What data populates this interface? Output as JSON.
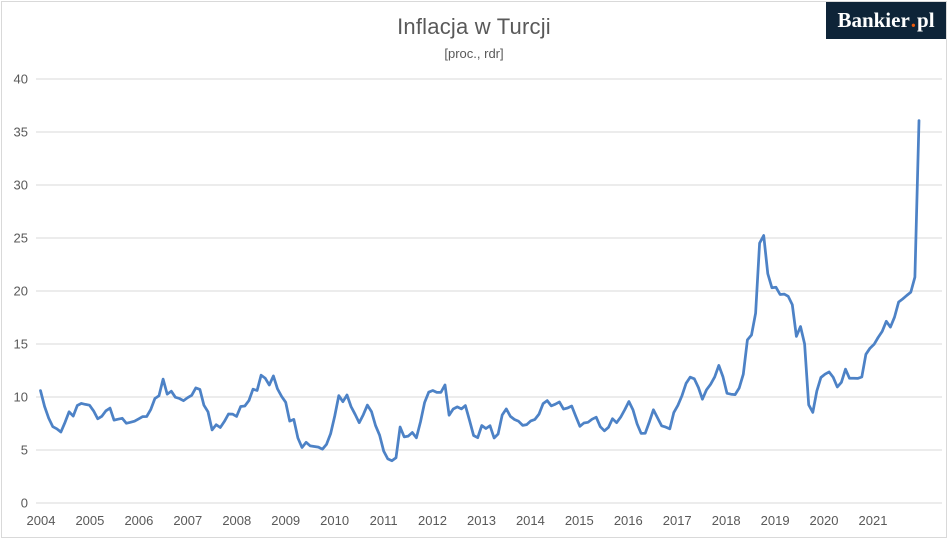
{
  "header": {
    "title": "Inflacja w Turcji",
    "subtitle": "[proc., rdr]",
    "logo": {
      "text_main": "Bankier",
      "dot": ".",
      "suffix": "pl",
      "bg_color": "#0e2438",
      "dot_color": "#ec5a0c",
      "text_color": "#ffffff"
    }
  },
  "chart_data": {
    "type": "line",
    "title": "Inflacja w Turcji",
    "subtitle": "[proc., rdr]",
    "frequency": "monthly",
    "start_year": 2004,
    "x_tick_labels": [
      "2004",
      "2005",
      "2006",
      "2007",
      "2008",
      "2009",
      "2010",
      "2011",
      "2012",
      "2013",
      "2014",
      "2015",
      "2016",
      "2017",
      "2018",
      "2019",
      "2020",
      "2021"
    ],
    "y_ticks": [
      0,
      5,
      10,
      15,
      20,
      25,
      30,
      35,
      40
    ],
    "ylim": [
      0,
      40
    ],
    "grid": "horizontal",
    "legend": "none",
    "line_color": "#4d82c6",
    "gridline_color": "#d9d9d9",
    "axis_text_color": "#595959",
    "values": [
      10.6,
      9.1,
      8.0,
      7.2,
      7.0,
      6.7,
      7.6,
      8.6,
      8.2,
      9.2,
      9.4,
      9.3,
      9.23,
      8.69,
      7.94,
      8.18,
      8.7,
      8.95,
      7.82,
      7.91,
      7.99,
      7.52,
      7.61,
      7.72,
      7.93,
      8.15,
      8.16,
      8.83,
      9.86,
      10.12,
      11.69,
      10.26,
      10.55,
      9.98,
      9.86,
      9.65,
      9.93,
      10.16,
      10.86,
      10.72,
      9.23,
      8.6,
      6.9,
      7.39,
      7.12,
      7.7,
      8.4,
      8.39,
      8.17,
      9.1,
      9.15,
      9.66,
      10.74,
      10.61,
      12.06,
      11.77,
      11.13,
      11.99,
      10.76,
      10.06,
      9.5,
      7.73,
      7.89,
      6.13,
      5.24,
      5.73,
      5.39,
      5.33,
      5.27,
      5.08,
      5.53,
      6.53,
      8.19,
      10.13,
      9.56,
      10.19,
      9.1,
      8.37,
      7.58,
      8.33,
      9.24,
      8.62,
      7.29,
      6.4,
      4.9,
      4.16,
      3.99,
      4.26,
      7.17,
      6.24,
      6.31,
      6.65,
      6.15,
      7.66,
      9.48,
      10.45,
      10.61,
      10.43,
      10.43,
      11.14,
      8.28,
      8.87,
      9.07,
      8.88,
      9.19,
      7.8,
      6.37,
      6.16,
      7.31,
      7.03,
      7.29,
      6.13,
      6.51,
      8.3,
      8.88,
      8.17,
      7.88,
      7.71,
      7.32,
      7.4,
      7.75,
      7.89,
      8.39,
      9.38,
      9.66,
      9.16,
      9.32,
      9.54,
      8.86,
      8.96,
      9.15,
      8.17,
      7.24,
      7.55,
      7.61,
      7.91,
      8.09,
      7.2,
      6.81,
      7.14,
      7.95,
      7.58,
      8.1,
      8.81,
      9.58,
      8.78,
      7.46,
      6.57,
      6.58,
      7.64,
      8.79,
      8.05,
      7.28,
      7.16,
      7.0,
      8.53,
      9.22,
      10.13,
      11.29,
      11.87,
      11.72,
      10.9,
      9.79,
      10.68,
      11.2,
      11.9,
      12.98,
      11.92,
      10.35,
      10.26,
      10.23,
      10.85,
      12.15,
      15.39,
      15.85,
      17.9,
      24.52,
      25.24,
      21.62,
      20.3,
      20.35,
      19.67,
      19.71,
      19.5,
      18.71,
      15.72,
      16.65,
      15.01,
      9.26,
      8.55,
      10.56,
      11.84,
      12.15,
      12.37,
      11.86,
      10.94,
      11.39,
      12.62,
      11.76,
      11.77,
      11.75,
      11.89,
      14.03,
      14.6,
      14.97,
      15.61,
      16.19,
      17.14,
      16.59,
      17.53,
      18.95,
      19.25,
      19.58,
      19.89,
      21.31,
      36.08
    ]
  }
}
